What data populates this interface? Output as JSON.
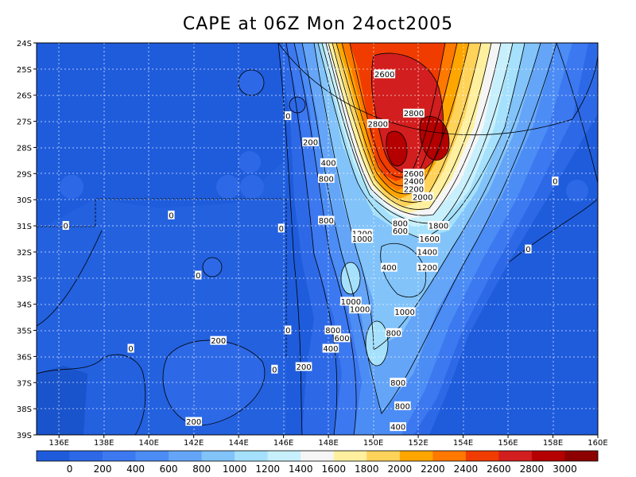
{
  "chart_data": {
    "type": "map-contour",
    "title": "CAPE at 06Z Mon 24oct2005",
    "lon_ticks": [
      "136E",
      "138E",
      "140E",
      "142E",
      "144E",
      "146E",
      "148E",
      "150E",
      "152E",
      "154E",
      "156E",
      "158E",
      "160E"
    ],
    "lat_ticks": [
      "24S",
      "25S",
      "26S",
      "27S",
      "28S",
      "29S",
      "30S",
      "31S",
      "32S",
      "33S",
      "34S",
      "35S",
      "36S",
      "37S",
      "38S",
      "39S"
    ],
    "lon_range": [
      135,
      160
    ],
    "lat_range": [
      -39,
      -24
    ],
    "grid": true,
    "colorbar": {
      "labels": [
        "0",
        "200",
        "400",
        "600",
        "800",
        "1000",
        "1200",
        "1400",
        "1600",
        "1800",
        "2000",
        "2200",
        "2400",
        "2600",
        "2800",
        "3000"
      ],
      "colors": [
        "#1e5cdc",
        "#2d69e6",
        "#3c78f0",
        "#4b8cf5",
        "#64a5f8",
        "#82c3fa",
        "#a5e1fc",
        "#c8f0fc",
        "#f5f5f5",
        "#fff0a0",
        "#ffd25a",
        "#ffa500",
        "#ff7800",
        "#f03c00",
        "#d21e1e",
        "#b40000",
        "#8c0000"
      ]
    },
    "contour_labels": [
      {
        "text": "2600",
        "lon": 150.5,
        "lat": -25.2
      },
      {
        "text": "2800",
        "lon": 151.8,
        "lat": -26.7
      },
      {
        "text": "2800",
        "lon": 150.2,
        "lat": -27.1
      },
      {
        "text": "0",
        "lon": 146.2,
        "lat": -26.8
      },
      {
        "text": "200",
        "lon": 147.2,
        "lat": -27.8
      },
      {
        "text": "400",
        "lon": 148.0,
        "lat": -28.6
      },
      {
        "text": "800",
        "lon": 147.9,
        "lat": -29.2
      },
      {
        "text": "2600",
        "lon": 151.8,
        "lat": -29.0
      },
      {
        "text": "2400",
        "lon": 151.8,
        "lat": -29.3
      },
      {
        "text": "2200",
        "lon": 151.8,
        "lat": -29.6
      },
      {
        "text": "2000",
        "lon": 152.2,
        "lat": -29.9
      },
      {
        "text": "0",
        "lon": 158.1,
        "lat": -29.3
      },
      {
        "text": "0",
        "lon": 141.0,
        "lat": -30.6
      },
      {
        "text": "0",
        "lon": 136.3,
        "lat": -31.0
      },
      {
        "text": "0",
        "lon": 145.9,
        "lat": -31.1
      },
      {
        "text": "800",
        "lon": 147.9,
        "lat": -30.8
      },
      {
        "text": "800",
        "lon": 151.2,
        "lat": -30.9
      },
      {
        "text": "600",
        "lon": 151.2,
        "lat": -31.2
      },
      {
        "text": "1800",
        "lon": 152.9,
        "lat": -31.0
      },
      {
        "text": "1200",
        "lon": 149.5,
        "lat": -31.3
      },
      {
        "text": "1000",
        "lon": 149.5,
        "lat": -31.5
      },
      {
        "text": "1600",
        "lon": 152.5,
        "lat": -31.5
      },
      {
        "text": "0",
        "lon": 156.9,
        "lat": -31.9
      },
      {
        "text": "1400",
        "lon": 152.4,
        "lat": -32.0
      },
      {
        "text": "400",
        "lon": 150.7,
        "lat": -32.6
      },
      {
        "text": "1200",
        "lon": 152.4,
        "lat": -32.6
      },
      {
        "text": "0",
        "lon": 142.2,
        "lat": -32.9
      },
      {
        "text": "1000",
        "lon": 149.0,
        "lat": -33.9
      },
      {
        "text": "1000",
        "lon": 149.4,
        "lat": -34.2
      },
      {
        "text": "1000",
        "lon": 151.4,
        "lat": -34.3
      },
      {
        "text": "0",
        "lon": 146.2,
        "lat": -35.0
      },
      {
        "text": "800",
        "lon": 148.2,
        "lat": -35.0
      },
      {
        "text": "600",
        "lon": 148.6,
        "lat": -35.3
      },
      {
        "text": "800",
        "lon": 150.9,
        "lat": -35.1
      },
      {
        "text": "200",
        "lon": 143.1,
        "lat": -35.4
      },
      {
        "text": "0",
        "lon": 139.2,
        "lat": -35.7
      },
      {
        "text": "400",
        "lon": 148.1,
        "lat": -35.7
      },
      {
        "text": "200",
        "lon": 146.9,
        "lat": -36.4
      },
      {
        "text": "0",
        "lon": 145.6,
        "lat": -36.5
      },
      {
        "text": "800",
        "lon": 151.1,
        "lat": -37.0
      },
      {
        "text": "800",
        "lon": 151.3,
        "lat": -37.9
      },
      {
        "text": "200",
        "lon": 142.0,
        "lat": -38.5
      },
      {
        "text": "400",
        "lon": 151.1,
        "lat": -38.7
      }
    ]
  }
}
